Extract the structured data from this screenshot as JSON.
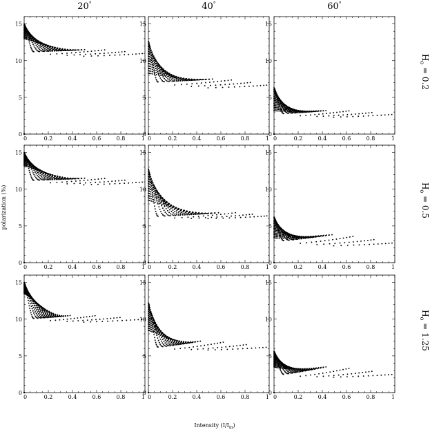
{
  "figure": {
    "ylabel": "polarization (%)",
    "xlabel_main": "Intensity (I/I",
    "xlabel_sub": "m",
    "xlabel_close": ")",
    "columns": [
      {
        "label": "20",
        "degree": "°"
      },
      {
        "label": "40",
        "degree": "°"
      },
      {
        "label": "60",
        "degree": "°"
      }
    ],
    "rows": [
      {
        "prefix": "H",
        "sub": "o",
        "value": " = 0.2"
      },
      {
        "prefix": "H",
        "sub": "o",
        "value": " = 0.5"
      },
      {
        "prefix": "H",
        "sub": "o",
        "value": " = 1.25"
      }
    ],
    "x_ticks": [
      "0",
      "0.2",
      "0.4",
      "0.6",
      "0.8",
      "1"
    ],
    "y_ticks": [
      "0",
      "5",
      "10",
      "15"
    ]
  },
  "chart_data": [
    {
      "type": "scatter",
      "panel": "20°, Ho = 0.2",
      "xlim": [
        0,
        1
      ],
      "ylim": [
        0,
        16
      ],
      "grid": false,
      "y_axis_start": 13.0,
      "y_top": 15.0,
      "y_plateau": 10.8,
      "x_fan_end": 0.47,
      "y_fan_end": 11.5,
      "x_tail_end": 1.0,
      "y_tail_end": 10.8
    },
    {
      "type": "scatter",
      "panel": "40°, Ho = 0.2",
      "xlim": [
        0,
        1
      ],
      "ylim": [
        0,
        16
      ],
      "grid": false,
      "y_axis_start": 8.3,
      "y_top": 12.6,
      "y_plateau": 6.5,
      "x_fan_end": 0.5,
      "y_fan_end": 7.5,
      "x_tail_end": 1.0,
      "y_tail_end": 6.5
    },
    {
      "type": "scatter",
      "panel": "60°, Ho = 0.2",
      "xlim": [
        0,
        1
      ],
      "ylim": [
        0,
        16
      ],
      "grid": false,
      "y_axis_start": 3.2,
      "y_top": 6.3,
      "y_plateau": 2.2,
      "x_fan_end": 0.4,
      "y_fan_end": 3.2,
      "x_tail_end": 1.0,
      "y_tail_end": 2.5
    },
    {
      "type": "scatter",
      "panel": "20°, Ho = 0.5",
      "xlim": [
        0,
        1
      ],
      "ylim": [
        0,
        16
      ],
      "grid": false,
      "y_axis_start": 13.2,
      "y_top": 15.0,
      "y_plateau": 10.8,
      "x_fan_end": 0.47,
      "y_fan_end": 11.5,
      "x_tail_end": 1.0,
      "y_tail_end": 10.8
    },
    {
      "type": "scatter",
      "panel": "40°, Ho = 0.5",
      "xlim": [
        0,
        1
      ],
      "ylim": [
        0,
        16
      ],
      "grid": false,
      "y_axis_start": 8.5,
      "y_top": 12.7,
      "y_plateau": 5.6,
      "x_fan_end": 0.55,
      "y_fan_end": 6.8,
      "x_tail_end": 1.0,
      "y_tail_end": 6.2
    },
    {
      "type": "scatter",
      "panel": "60°, Ho = 0.5",
      "xlim": [
        0,
        1
      ],
      "ylim": [
        0,
        16
      ],
      "grid": false,
      "y_axis_start": 3.4,
      "y_top": 6.2,
      "y_plateau": 1.8,
      "x_fan_end": 0.45,
      "y_fan_end": 3.8,
      "x_tail_end": 1.0,
      "y_tail_end": 2.5
    },
    {
      "type": "scatter",
      "panel": "20°, Ho = 1.25",
      "xlim": [
        0,
        1
      ],
      "ylim": [
        0,
        16
      ],
      "grid": false,
      "y_axis_start": 13.5,
      "y_top": 15.0,
      "y_plateau": 9.5,
      "x_fan_end": 0.35,
      "y_fan_end": 10.5,
      "x_tail_end": 1.0,
      "y_tail_end": 9.8
    },
    {
      "type": "scatter",
      "panel": "40°, Ho = 1.25",
      "xlim": [
        0,
        1
      ],
      "ylim": [
        0,
        16
      ],
      "grid": false,
      "y_axis_start": 8.5,
      "y_top": 12.2,
      "y_plateau": 5.0,
      "x_fan_end": 0.4,
      "y_fan_end": 7.0,
      "x_tail_end": 1.0,
      "y_tail_end": 6.0
    },
    {
      "type": "scatter",
      "panel": "60°, Ho = 1.25",
      "xlim": [
        0,
        1
      ],
      "ylim": [
        0,
        16
      ],
      "grid": false,
      "y_axis_start": 3.5,
      "y_top": 5.6,
      "y_plateau": 1.0,
      "x_fan_end": 0.4,
      "y_fan_end": 3.5,
      "x_tail_end": 1.0,
      "y_tail_end": 2.3
    }
  ]
}
